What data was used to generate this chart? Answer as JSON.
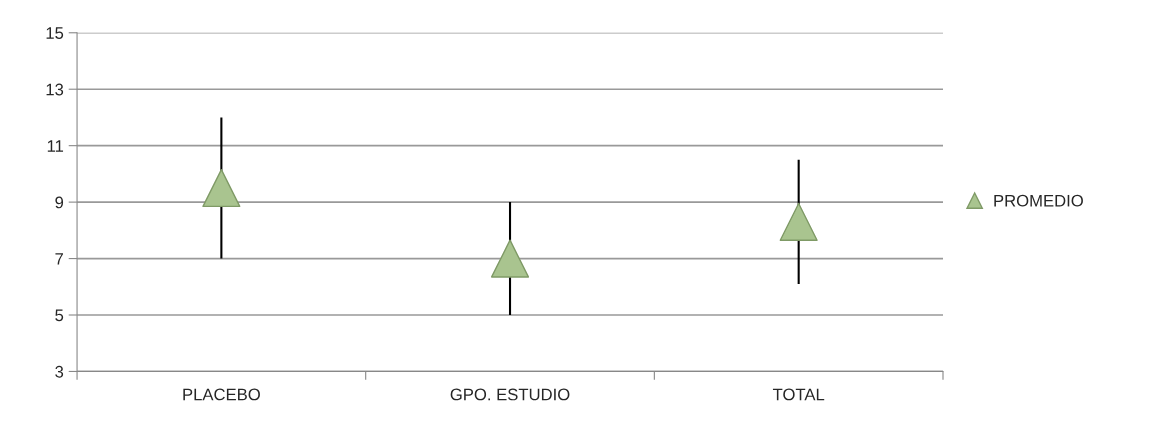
{
  "chart_data": {
    "type": "scatter",
    "categories": [
      "PLACEBO",
      "GPO. ESTUDIO",
      "TOTAL"
    ],
    "series": [
      {
        "name": "PROMEDIO",
        "color": "#a9c48f",
        "values": [
          9.5,
          7.0,
          8.3
        ],
        "errors": [
          2.5,
          2,
          2.2
        ]
      }
    ],
    "ylim": [
      3,
      15
    ],
    "yticks": [
      3,
      5,
      7,
      9,
      11,
      13,
      15
    ],
    "grid": "y",
    "legend": "right",
    "marker": "triangle"
  }
}
